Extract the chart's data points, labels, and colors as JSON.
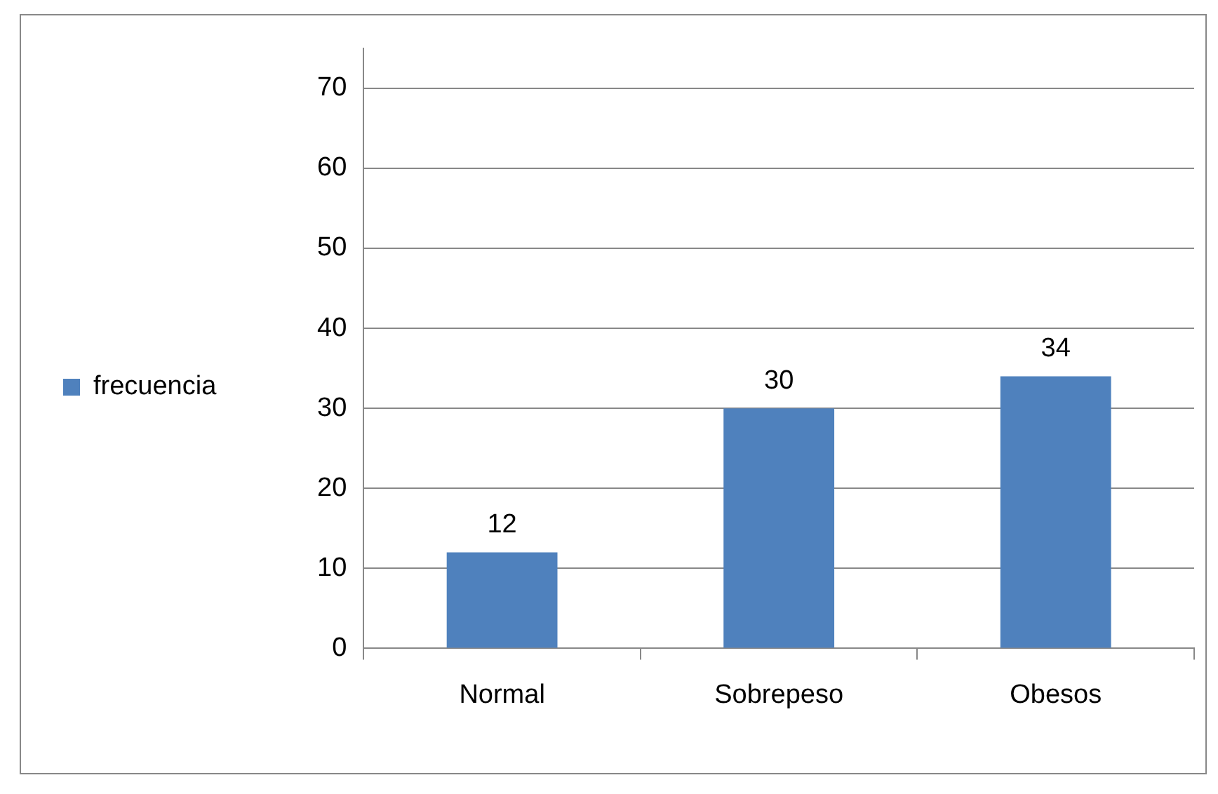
{
  "chart_data": {
    "type": "bar",
    "categories": [
      "Normal",
      "Sobrepeso",
      "Obesos"
    ],
    "series": [
      {
        "name": "frecuencia",
        "color": "#4f81bd",
        "values": [
          12,
          30,
          34
        ]
      }
    ],
    "ylim": [
      0,
      75
    ],
    "yticks": [
      0,
      10,
      20,
      30,
      40,
      50,
      60,
      70
    ],
    "grid": "y",
    "legend": "left",
    "data_labels": true
  }
}
